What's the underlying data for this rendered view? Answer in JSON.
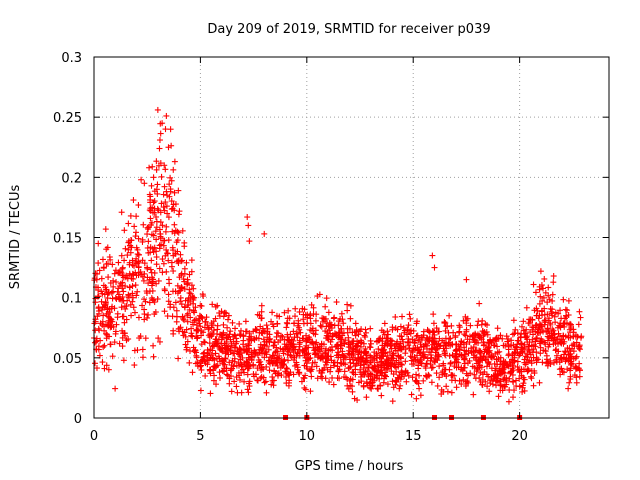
{
  "chart_data": {
    "type": "scatter",
    "title": "Day 209 of 2019, SRMTID for receiver p039",
    "xlabel": "GPS time / hours",
    "ylabel": "SRMTID / TECUs",
    "xlim": [
      0,
      24.2
    ],
    "ylim": [
      0,
      0.3
    ],
    "xticks": [
      "0",
      "5",
      "10",
      "15",
      "20"
    ],
    "xtick_values": [
      0,
      5,
      10,
      15,
      20
    ],
    "yticks": [
      "0",
      "0.05",
      "0.1",
      "0.15",
      "0.2",
      "0.25",
      "0.3"
    ],
    "ytick_values": [
      0,
      0.05,
      0.1,
      0.15,
      0.2,
      0.25,
      0.3
    ],
    "grid": true,
    "marker": "+",
    "color": "#ff0000",
    "x_range_hours": [
      0,
      22.9
    ],
    "trend": [
      {
        "x": 0.0,
        "y": 0.085
      },
      {
        "x": 0.5,
        "y": 0.095
      },
      {
        "x": 1.0,
        "y": 0.09
      },
      {
        "x": 1.5,
        "y": 0.105
      },
      {
        "x": 2.0,
        "y": 0.115
      },
      {
        "x": 2.5,
        "y": 0.13
      },
      {
        "x": 3.0,
        "y": 0.16
      },
      {
        "x": 3.5,
        "y": 0.15
      },
      {
        "x": 4.0,
        "y": 0.12
      },
      {
        "x": 4.5,
        "y": 0.085
      },
      {
        "x": 5.0,
        "y": 0.065
      },
      {
        "x": 6.0,
        "y": 0.055
      },
      {
        "x": 7.0,
        "y": 0.05
      },
      {
        "x": 8.0,
        "y": 0.055
      },
      {
        "x": 9.0,
        "y": 0.055
      },
      {
        "x": 10.0,
        "y": 0.06
      },
      {
        "x": 11.0,
        "y": 0.06
      },
      {
        "x": 12.0,
        "y": 0.055
      },
      {
        "x": 13.0,
        "y": 0.045
      },
      {
        "x": 14.0,
        "y": 0.05
      },
      {
        "x": 15.0,
        "y": 0.055
      },
      {
        "x": 16.0,
        "y": 0.055
      },
      {
        "x": 17.0,
        "y": 0.05
      },
      {
        "x": 18.0,
        "y": 0.06
      },
      {
        "x": 19.0,
        "y": 0.045
      },
      {
        "x": 20.0,
        "y": 0.05
      },
      {
        "x": 20.5,
        "y": 0.06
      },
      {
        "x": 21.0,
        "y": 0.08
      },
      {
        "x": 21.5,
        "y": 0.075
      },
      {
        "x": 22.0,
        "y": 0.06
      },
      {
        "x": 22.9,
        "y": 0.055
      }
    ],
    "outliers": [
      {
        "x": 3.0,
        "y": 0.256
      },
      {
        "x": 3.2,
        "y": 0.245
      },
      {
        "x": 3.4,
        "y": 0.251
      },
      {
        "x": 3.1,
        "y": 0.231
      },
      {
        "x": 3.6,
        "y": 0.24
      },
      {
        "x": 3.5,
        "y": 0.225
      },
      {
        "x": 3.3,
        "y": 0.21
      },
      {
        "x": 2.8,
        "y": 0.2
      },
      {
        "x": 7.2,
        "y": 0.167
      },
      {
        "x": 7.25,
        "y": 0.16
      },
      {
        "x": 7.3,
        "y": 0.147
      },
      {
        "x": 8.0,
        "y": 0.153
      },
      {
        "x": 1.3,
        "y": 0.171
      },
      {
        "x": 0.2,
        "y": 0.145
      },
      {
        "x": 15.9,
        "y": 0.135
      },
      {
        "x": 16.0,
        "y": 0.125
      },
      {
        "x": 21.0,
        "y": 0.122
      },
      {
        "x": 21.6,
        "y": 0.118
      },
      {
        "x": 17.5,
        "y": 0.115
      }
    ],
    "zero_markers_x": [
      9.0,
      10.0,
      16.0,
      16.8,
      18.3,
      20.0
    ]
  }
}
